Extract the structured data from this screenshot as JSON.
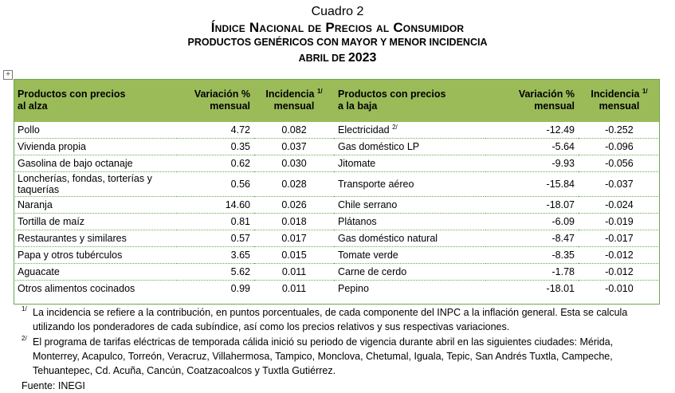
{
  "header": {
    "line1": "Cuadro 2",
    "line2": "Índice Nacional de Precios al Consumidor",
    "line3": "PRODUCTOS GENÉRICOS CON MAYOR Y MENOR INCIDENCIA",
    "line4_prefix": "ABRIL DE ",
    "line4_year": "2023"
  },
  "table_handle": "+",
  "columns": {
    "up_product": [
      "Productos con precios",
      "al alza"
    ],
    "up_var": [
      "Variación %",
      "mensual"
    ],
    "up_inc": [
      "Incidencia",
      "mensual"
    ],
    "up_inc_mark": "1/",
    "down_product": [
      "Productos con precios",
      "a la baja"
    ],
    "down_var": [
      "Variación %",
      "mensual"
    ],
    "down_inc": [
      "Incidencia",
      "mensual"
    ],
    "down_inc_mark": "1/"
  },
  "rows": [
    {
      "up": "Pollo",
      "up_var": "4.72",
      "up_inc": "0.082",
      "down": "Electricidad",
      "down_mark": "2/",
      "down_var": "-12.49",
      "down_inc": "-0.252"
    },
    {
      "up": "Vivienda propia",
      "up_var": "0.35",
      "up_inc": "0.037",
      "down": "Gas doméstico LP",
      "down_mark": "",
      "down_var": "-5.64",
      "down_inc": "-0.096"
    },
    {
      "up": "Gasolina de bajo octanaje",
      "up_var": "0.62",
      "up_inc": "0.030",
      "down": "Jitomate",
      "down_mark": "",
      "down_var": "-9.93",
      "down_inc": "-0.056"
    },
    {
      "up": "Loncherías, fondas, torterías y taquerías",
      "up_var": "0.56",
      "up_inc": "0.028",
      "down": "Transporte aéreo",
      "down_mark": "",
      "down_var": "-15.84",
      "down_inc": "-0.037"
    },
    {
      "up": "Naranja",
      "up_var": "14.60",
      "up_inc": "0.026",
      "down": "Chile serrano",
      "down_mark": "",
      "down_var": "-18.07",
      "down_inc": "-0.024"
    },
    {
      "up": "Tortilla de maíz",
      "up_var": "0.81",
      "up_inc": "0.018",
      "down": "Plátanos",
      "down_mark": "",
      "down_var": "-6.09",
      "down_inc": "-0.019"
    },
    {
      "up": "Restaurantes y similares",
      "up_var": "0.57",
      "up_inc": "0.017",
      "down": "Gas doméstico natural",
      "down_mark": "",
      "down_var": "-8.47",
      "down_inc": "-0.017"
    },
    {
      "up": "Papa y otros tubérculos",
      "up_var": "3.65",
      "up_inc": "0.015",
      "down": "Tomate verde",
      "down_mark": "",
      "down_var": "-8.35",
      "down_inc": "-0.012"
    },
    {
      "up": "Aguacate",
      "up_var": "5.62",
      "up_inc": "0.011",
      "down": "Carne de cerdo",
      "down_mark": "",
      "down_var": "-1.78",
      "down_inc": "-0.012"
    },
    {
      "up": "Otros alimentos cocinados",
      "up_var": "0.99",
      "up_inc": "0.011",
      "down": "Pepino",
      "down_mark": "",
      "down_var": "-18.01",
      "down_inc": "-0.010"
    }
  ],
  "notes": [
    {
      "mark": "1/",
      "text": "La incidencia se refiere a la contribución, en puntos porcentuales, de cada componente del INPC a la inflación general. Esta se calcula utilizando los ponderadores de cada subíndice, así como los precios relativos y sus respectivas variaciones."
    },
    {
      "mark": "2/",
      "text": "El programa de tarifas eléctricas de temporada cálida inició su periodo de vigencia durante abril en las siguientes ciudades: Mérida, Monterrey, Acapulco, Torreón, Veracruz, Villahermosa, Tampico, Monclova, Chetumal, Iguala, Tepic, San Andrés Tuxtla, Campeche, Tehuantepec, Cd. Acuña, Cancún, Coatzacoalcos y Tuxtla Gutiérrez."
    }
  ],
  "source": "Fuente: INEGI",
  "colors": {
    "header_bg": "#9bbb59",
    "rule": "#6aa84f"
  }
}
